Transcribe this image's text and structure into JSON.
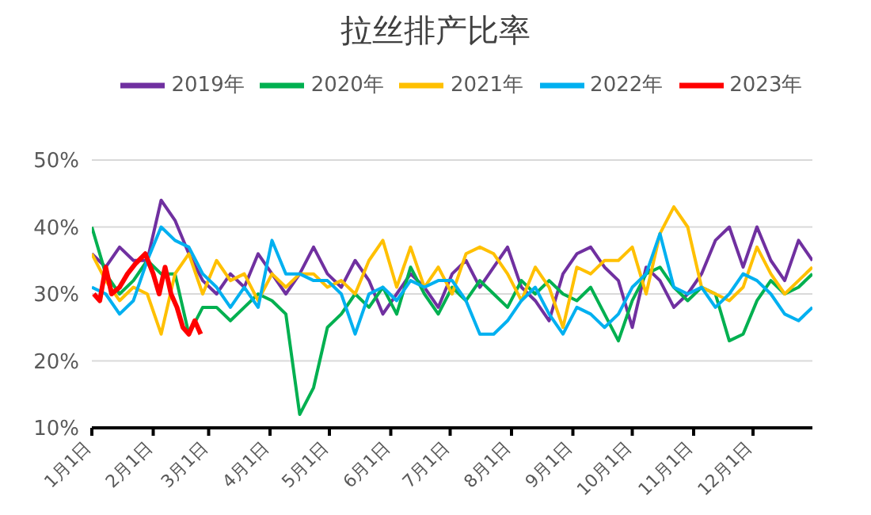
{
  "chart_data": {
    "type": "line",
    "title": "拉丝排产比率",
    "x": [
      "--01-01",
      "--01-08",
      "--01-15",
      "--01-22",
      "--01-29",
      "--02-05",
      "--02-12",
      "--02-19",
      "--02-26",
      "--03-05",
      "--03-12",
      "--03-19",
      "--03-26",
      "--04-02",
      "--04-09",
      "--04-16",
      "--04-23",
      "--04-30",
      "--05-07",
      "--05-14",
      "--05-21",
      "--05-28",
      "--06-04",
      "--06-11",
      "--06-18",
      "--06-25",
      "--07-02",
      "--07-09",
      "--07-16",
      "--07-23",
      "--07-30",
      "--08-06",
      "--08-13",
      "--08-20",
      "--08-27",
      "--09-03",
      "--09-10",
      "--09-17",
      "--09-24",
      "--10-01",
      "--10-08",
      "--10-15",
      "--10-22",
      "--10-29",
      "--11-05",
      "--11-12",
      "--11-19",
      "--11-26",
      "--12-03",
      "--12-10",
      "--12-17",
      "--12-24",
      "--12-31"
    ],
    "series": [
      {
        "name": "2019年",
        "color": "#7030a0",
        "values": [
          36,
          34,
          37,
          35,
          35,
          44,
          41,
          36,
          32,
          30,
          33,
          31,
          36,
          33,
          30,
          33,
          37,
          33,
          31,
          35,
          32,
          27,
          30,
          33,
          31,
          28,
          33,
          35,
          31,
          34,
          37,
          31,
          29,
          26,
          33,
          36,
          37,
          34,
          32,
          25,
          34,
          32,
          28,
          30,
          33,
          38,
          40,
          34,
          40,
          35,
          32,
          38,
          35
        ]
      },
      {
        "name": "2020年",
        "color": "#00b050",
        "values": [
          40,
          33,
          30,
          32,
          35,
          33,
          33,
          24,
          28,
          28,
          26,
          28,
          30,
          29,
          27,
          12,
          16,
          25,
          27,
          30,
          28,
          31,
          27,
          34,
          30,
          27,
          31,
          29,
          32,
          30,
          28,
          32,
          30,
          32,
          30,
          29,
          31,
          27,
          23,
          29,
          33,
          34,
          31,
          29,
          31,
          30,
          23,
          24,
          29,
          32,
          30,
          31,
          33
        ]
      },
      {
        "name": "2021年",
        "color": "#ffc000",
        "values": [
          36,
          32,
          29,
          31,
          30,
          24,
          33,
          36,
          30,
          35,
          32,
          33,
          29,
          33,
          31,
          33,
          33,
          31,
          32,
          30,
          35,
          38,
          31,
          37,
          31,
          34,
          30,
          36,
          37,
          36,
          33,
          29,
          34,
          31,
          25,
          34,
          33,
          35,
          35,
          37,
          30,
          39,
          43,
          40,
          31,
          30,
          29,
          31,
          37,
          33,
          30,
          32,
          34
        ]
      },
      {
        "name": "2022年",
        "color": "#00b0f0",
        "values": [
          31,
          30,
          27,
          29,
          35,
          40,
          38,
          37,
          33,
          31,
          28,
          31,
          28,
          38,
          33,
          33,
          32,
          32,
          30,
          24,
          30,
          31,
          29,
          32,
          31,
          32,
          32,
          29,
          24,
          24,
          26,
          29,
          31,
          27,
          24,
          28,
          27,
          25,
          27,
          31,
          33,
          39,
          31,
          30,
          31,
          28,
          30,
          33,
          32,
          30,
          27,
          26,
          28
        ]
      },
      {
        "name": "2023年",
        "color": "#ff0000",
        "x": [
          "--01-02",
          "--01-05",
          "--01-08",
          "--01-11",
          "--01-15",
          "--01-19",
          "--01-23",
          "--01-28",
          "--02-01",
          "--02-04",
          "--02-07",
          "--02-10",
          "--02-13",
          "--02-16",
          "--02-19",
          "--02-22",
          "--02-25"
        ],
        "values": [
          30,
          29,
          34,
          30,
          31,
          33,
          34.5,
          36,
          33,
          30,
          34,
          30,
          28,
          25,
          24,
          26,
          24
        ]
      }
    ],
    "xlim": [
      "--01-01",
      "--12-31"
    ],
    "xticks": [
      {
        "value": "--01-01",
        "label": "1月1日"
      },
      {
        "value": "--02-01",
        "label": "2月1日"
      },
      {
        "value": "--03-01",
        "label": "3月1日"
      },
      {
        "value": "--04-01",
        "label": "4月1日"
      },
      {
        "value": "--05-01",
        "label": "5月1日"
      },
      {
        "value": "--06-01",
        "label": "6月1日"
      },
      {
        "value": "--07-01",
        "label": "7月1日"
      },
      {
        "value": "--08-01",
        "label": "8月1日"
      },
      {
        "value": "--09-01",
        "label": "9月1日"
      },
      {
        "value": "--10-01",
        "label": "10月1日"
      },
      {
        "value": "--11-01",
        "label": "11月1日"
      },
      {
        "value": "--12-01",
        "label": "12月1日"
      }
    ],
    "ylim": [
      10,
      50
    ],
    "yticks": [
      {
        "value": 10,
        "label": "10%"
      },
      {
        "value": 20,
        "label": "20%"
      },
      {
        "value": 30,
        "label": "30%"
      },
      {
        "value": 40,
        "label": "40%"
      },
      {
        "value": 50,
        "label": "50%"
      }
    ],
    "grid": "y",
    "legend": "top",
    "marker": "none",
    "line_style": "solid"
  }
}
